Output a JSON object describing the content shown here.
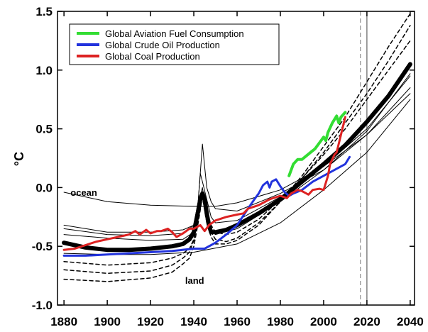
{
  "chart_data": {
    "type": "line",
    "title": "",
    "xlabel": "",
    "ylabel": "°C",
    "xlim": [
      1877,
      2042
    ],
    "ylim": [
      -1.0,
      1.5
    ],
    "x_ticks": [
      "1880",
      "1900",
      "1920",
      "1940",
      "1960",
      "1980",
      "2000",
      "2020",
      "2040"
    ],
    "y_ticks": [
      "-1.0",
      "-0.5",
      "0.0",
      "0.5",
      "1.0",
      "1.5"
    ],
    "vertical_lines": [
      {
        "x": 2017,
        "style": "dashed"
      },
      {
        "x": 2020,
        "style": "solid"
      }
    ],
    "annotations": [
      {
        "text": "ocean",
        "x": 1883,
        "y": -0.07
      },
      {
        "text": "land",
        "x": 1936,
        "y": -0.82
      }
    ],
    "legend": {
      "placement": "top-left",
      "entries": [
        {
          "label": "Global Aviation Fuel Consumption",
          "color": "#33dd33"
        },
        {
          "label": "Global Crude Oil Production",
          "color": "#2233dd"
        },
        {
          "label": "Global Coal Production",
          "color": "#dd2222"
        }
      ]
    },
    "series": [
      {
        "name": "Global Aviation Fuel Consumption",
        "color": "#33dd33",
        "width": 4,
        "x": [
          1984,
          1986,
          1988,
          1990,
          1992,
          1994,
          1996,
          1998,
          2000,
          2001,
          2002,
          2004,
          2006,
          2007,
          2008,
          2010
        ],
        "y": [
          0.1,
          0.2,
          0.24,
          0.24,
          0.27,
          0.3,
          0.33,
          0.38,
          0.43,
          0.4,
          0.47,
          0.55,
          0.61,
          0.55,
          0.6,
          0.64
        ]
      },
      {
        "name": "Global Crude Oil Production",
        "color": "#2233dd",
        "width": 3,
        "x": [
          1880,
          1890,
          1900,
          1910,
          1920,
          1930,
          1940,
          1945,
          1950,
          1955,
          1960,
          1965,
          1968,
          1970,
          1972,
          1974,
          1975,
          1976,
          1978,
          1980,
          1982,
          1984,
          1986,
          1990,
          1995,
          2000,
          2005,
          2010,
          2012
        ],
        "y": [
          -0.58,
          -0.58,
          -0.57,
          -0.56,
          -0.55,
          -0.54,
          -0.52,
          -0.52,
          -0.47,
          -0.4,
          -0.32,
          -0.18,
          -0.1,
          -0.05,
          0.02,
          0.05,
          0.0,
          0.05,
          0.07,
          0.01,
          -0.04,
          -0.07,
          -0.05,
          -0.02,
          0.05,
          0.1,
          0.15,
          0.2,
          0.26
        ]
      },
      {
        "name": "Global Coal Production",
        "color": "#dd2222",
        "width": 3,
        "x": [
          1880,
          1885,
          1890,
          1895,
          1900,
          1905,
          1910,
          1913,
          1915,
          1918,
          1920,
          1923,
          1925,
          1928,
          1930,
          1932,
          1935,
          1938,
          1940,
          1943,
          1945,
          1947,
          1950,
          1955,
          1960,
          1963,
          1965,
          1970,
          1975,
          1980,
          1983,
          1985,
          1988,
          1990,
          1993,
          1995,
          1998,
          2000,
          2002,
          2003,
          2005,
          2006,
          2008,
          2010
        ],
        "y": [
          -0.53,
          -0.52,
          -0.49,
          -0.46,
          -0.44,
          -0.42,
          -0.4,
          -0.37,
          -0.4,
          -0.36,
          -0.39,
          -0.37,
          -0.37,
          -0.35,
          -0.38,
          -0.42,
          -0.39,
          -0.35,
          -0.35,
          -0.32,
          -0.37,
          -0.32,
          -0.28,
          -0.25,
          -0.23,
          -0.22,
          -0.18,
          -0.15,
          -0.1,
          -0.07,
          -0.09,
          -0.05,
          -0.02,
          -0.03,
          -0.06,
          -0.02,
          -0.01,
          -0.02,
          0.1,
          0.2,
          0.28,
          0.3,
          0.45,
          0.6
        ]
      },
      {
        "name": "",
        "color": "#000000",
        "width": 6,
        "x": [
          1880,
          1890,
          1900,
          1910,
          1920,
          1930,
          1935,
          1938,
          1940,
          1942,
          1943,
          1944,
          1945,
          1946,
          1947,
          1948,
          1950,
          1955,
          1960,
          1970,
          1980,
          1990,
          2000,
          2010,
          2020,
          2030,
          2040
        ],
        "y": [
          -0.47,
          -0.51,
          -0.53,
          -0.53,
          -0.52,
          -0.5,
          -0.48,
          -0.44,
          -0.38,
          -0.2,
          -0.1,
          -0.05,
          -0.1,
          -0.22,
          -0.32,
          -0.38,
          -0.38,
          -0.36,
          -0.32,
          -0.22,
          -0.1,
          0.05,
          0.2,
          0.36,
          0.56,
          0.78,
          1.05
        ]
      },
      {
        "name": "",
        "color": "#000000",
        "width": 1,
        "x": [
          1880,
          1900,
          1920,
          1940,
          1945,
          1950,
          1960,
          1980,
          2000,
          2020,
          2040
        ],
        "y": [
          -0.04,
          -0.12,
          -0.15,
          -0.16,
          -0.16,
          -0.16,
          -0.13,
          -0.02,
          0.18,
          0.45,
          0.8
        ]
      },
      {
        "name": "",
        "color": "#000000",
        "width": 1,
        "x": [
          1880,
          1900,
          1920,
          1935,
          1940,
          1942,
          1944,
          1945,
          1946,
          1948,
          1950,
          1960,
          1980,
          2000,
          2020,
          2040
        ],
        "y": [
          -0.32,
          -0.38,
          -0.38,
          -0.36,
          -0.32,
          -0.12,
          0.37,
          0.18,
          0.0,
          -0.12,
          -0.18,
          -0.2,
          -0.05,
          0.15,
          0.45,
          0.85
        ]
      },
      {
        "name": "",
        "color": "#000000",
        "width": 1,
        "x": [
          1880,
          1900,
          1920,
          1935,
          1940,
          1942,
          1943,
          1944,
          1946,
          1948,
          1950,
          1960,
          1980,
          2000,
          2020,
          2040
        ],
        "y": [
          -0.35,
          -0.4,
          -0.41,
          -0.39,
          -0.32,
          -0.12,
          0.12,
          0.05,
          -0.1,
          -0.25,
          -0.3,
          -0.28,
          -0.08,
          0.18,
          0.5,
          0.95
        ]
      },
      {
        "name": "",
        "color": "#000000",
        "width": 1,
        "x": [
          1880,
          1900,
          1920,
          1935,
          1940,
          1942,
          1944,
          1946,
          1948,
          1950,
          1960,
          1980,
          2000,
          2020,
          2040
        ],
        "y": [
          -0.4,
          -0.43,
          -0.45,
          -0.44,
          -0.38,
          -0.15,
          0.0,
          -0.25,
          -0.36,
          -0.4,
          -0.35,
          -0.12,
          0.15,
          0.48,
          0.97
        ]
      },
      {
        "name": "",
        "color": "#000000",
        "width": 1,
        "x": [
          1880,
          1900,
          1920,
          1940,
          1960,
          1980,
          2000,
          2020,
          2040
        ],
        "y": [
          -0.56,
          -0.57,
          -0.57,
          -0.55,
          -0.48,
          -0.3,
          -0.02,
          0.3,
          0.75
        ]
      },
      {
        "name": "",
        "color": "#000000",
        "width": 1.5,
        "dash": "5,4",
        "x": [
          1880,
          1900,
          1920,
          1930,
          1935,
          1938,
          1940,
          1942,
          1944,
          1946,
          1948,
          1950,
          1955,
          1960,
          1970,
          1980,
          1990,
          2000,
          2010,
          2020,
          2030,
          2040
        ],
        "y": [
          -0.78,
          -0.8,
          -0.77,
          -0.72,
          -0.65,
          -0.6,
          -0.5,
          -0.3,
          -0.08,
          -0.3,
          -0.42,
          -0.48,
          -0.48,
          -0.45,
          -0.32,
          -0.12,
          0.1,
          0.35,
          0.6,
          0.9,
          1.2,
          1.48
        ]
      },
      {
        "name": "",
        "color": "#000000",
        "width": 1.5,
        "dash": "5,4",
        "x": [
          1880,
          1900,
          1920,
          1930,
          1935,
          1938,
          1940,
          1942,
          1944,
          1946,
          1948,
          1950,
          1955,
          1960,
          1970,
          1980,
          1990,
          2000,
          2010,
          2020,
          2030,
          2040
        ],
        "y": [
          -0.7,
          -0.73,
          -0.71,
          -0.66,
          -0.6,
          -0.55,
          -0.45,
          -0.25,
          -0.05,
          -0.25,
          -0.38,
          -0.44,
          -0.46,
          -0.43,
          -0.3,
          -0.12,
          0.08,
          0.3,
          0.55,
          0.8,
          1.08,
          1.38
        ]
      },
      {
        "name": "",
        "color": "#000000",
        "width": 1.5,
        "dash": "5,4",
        "x": [
          1880,
          1900,
          1920,
          1930,
          1935,
          1938,
          1940,
          1942,
          1944,
          1946,
          1948,
          1950,
          1955,
          1960,
          1970,
          1980,
          1990,
          2000,
          2010,
          2020,
          2030,
          2040
        ],
        "y": [
          -0.63,
          -0.66,
          -0.64,
          -0.6,
          -0.56,
          -0.52,
          -0.44,
          -0.25,
          -0.08,
          -0.2,
          -0.32,
          -0.38,
          -0.4,
          -0.38,
          -0.27,
          -0.1,
          0.08,
          0.28,
          0.5,
          0.75,
          1.0,
          1.25
        ]
      }
    ]
  }
}
